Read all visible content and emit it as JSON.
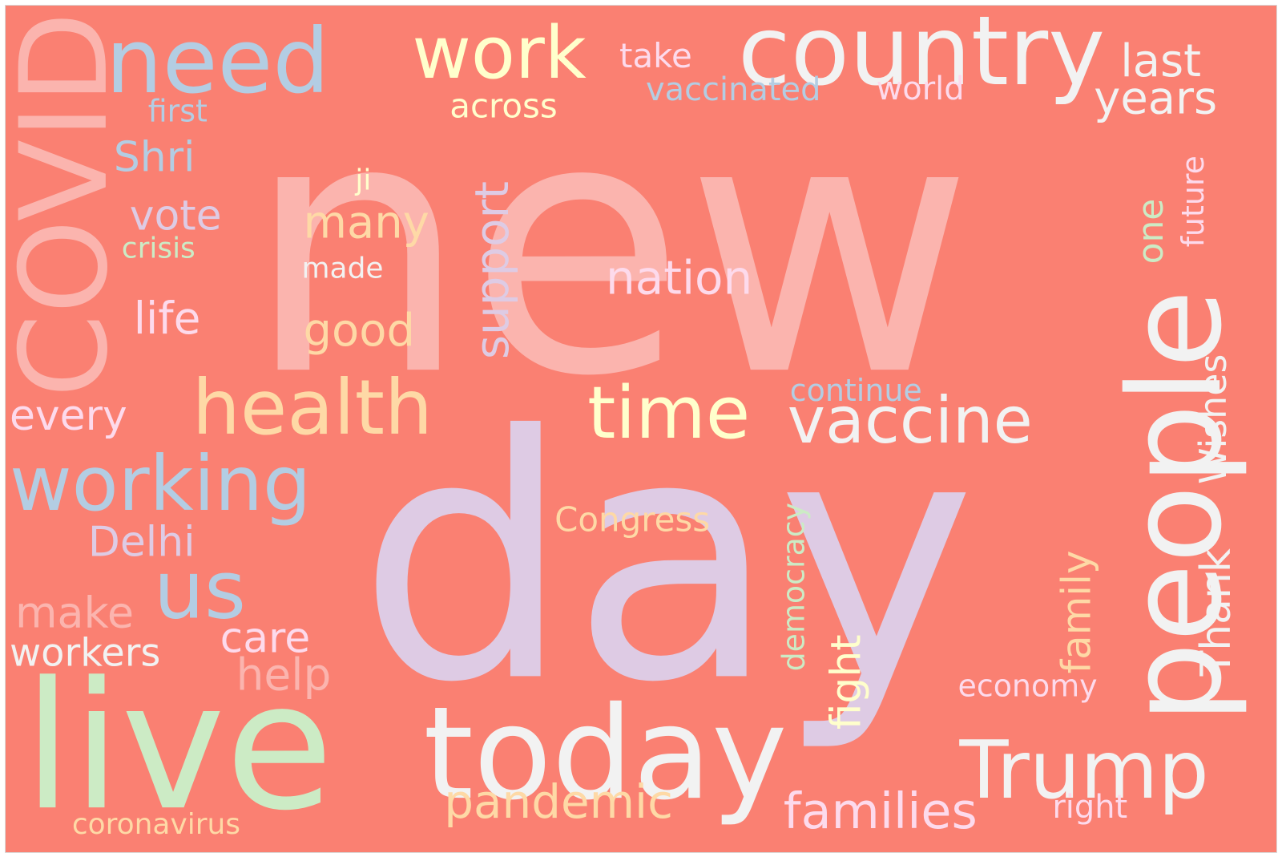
{
  "cloud": {
    "background": "#fa8072",
    "words": [
      {
        "id": "new",
        "text": "new",
        "color": "#fbb4ae"
      },
      {
        "id": "day",
        "text": "day",
        "color": "#decbe4"
      },
      {
        "id": "live",
        "text": "live",
        "color": "#ccebc5"
      },
      {
        "id": "people",
        "text": "people",
        "color": "#f2f2f2"
      },
      {
        "id": "covid",
        "text": "COVID",
        "color": "#fbb4ae"
      },
      {
        "id": "today",
        "text": "today",
        "color": "#f2f2f2"
      },
      {
        "id": "country",
        "text": "country",
        "color": "#f2f2f2"
      },
      {
        "id": "need",
        "text": "need",
        "color": "#b3cde3"
      },
      {
        "id": "work",
        "text": "work",
        "color": "#ffffcc"
      },
      {
        "id": "health",
        "text": "health",
        "color": "#fed9a6"
      },
      {
        "id": "working",
        "text": "working",
        "color": "#b3cde3"
      },
      {
        "id": "trump",
        "text": "Trump",
        "color": "#f2f2f2"
      },
      {
        "id": "vaccine",
        "text": "vaccine",
        "color": "#f2f2f2"
      },
      {
        "id": "time",
        "text": "time",
        "color": "#ffffcc"
      },
      {
        "id": "us",
        "text": "us",
        "color": "#b3cde3"
      },
      {
        "id": "nation",
        "text": "nation",
        "color": "#fddaec"
      },
      {
        "id": "families",
        "text": "families",
        "color": "#fddaec"
      },
      {
        "id": "pandemic",
        "text": "pandemic",
        "color": "#fed9a6"
      },
      {
        "id": "years",
        "text": "years",
        "color": "#f2f2f2"
      },
      {
        "id": "last",
        "text": "last",
        "color": "#f2f2f2"
      },
      {
        "id": "many",
        "text": "many",
        "color": "#fed9a6"
      },
      {
        "id": "good",
        "text": "good",
        "color": "#fed9a6"
      },
      {
        "id": "shri",
        "text": "Shri",
        "color": "#b3cde3"
      },
      {
        "id": "vote",
        "text": "vote",
        "color": "#decbe4"
      },
      {
        "id": "life",
        "text": "life",
        "color": "#fddaec"
      },
      {
        "id": "delhi",
        "text": "Delhi",
        "color": "#decbe4"
      },
      {
        "id": "every",
        "text": "every",
        "color": "#fddaec"
      },
      {
        "id": "make",
        "text": "make",
        "color": "#fbb4ae"
      },
      {
        "id": "workers",
        "text": "workers",
        "color": "#f2f2f2"
      },
      {
        "id": "care",
        "text": "care",
        "color": "#fddaec"
      },
      {
        "id": "help",
        "text": "help",
        "color": "#fbb4ae"
      },
      {
        "id": "support",
        "text": "support",
        "color": "#decbe4"
      },
      {
        "id": "family",
        "text": "family",
        "color": "#fed9a6"
      },
      {
        "id": "fight",
        "text": "fight",
        "color": "#ffffcc"
      },
      {
        "id": "thank",
        "text": "Thank",
        "color": "#f2f2f2"
      },
      {
        "id": "wishes",
        "text": "Wishes",
        "color": "#f2f2f2"
      },
      {
        "id": "across",
        "text": "across",
        "color": "#ffffcc"
      },
      {
        "id": "take",
        "text": "take",
        "color": "#fddaec"
      },
      {
        "id": "vaccinated",
        "text": "vaccinated",
        "color": "#b3cde3"
      },
      {
        "id": "world",
        "text": "world",
        "color": "#fddaec"
      },
      {
        "id": "first",
        "text": "first",
        "color": "#b3cde3"
      },
      {
        "id": "ji",
        "text": "ji",
        "color": "#ffffcc"
      },
      {
        "id": "crisis",
        "text": "crisis",
        "color": "#ccebc5"
      },
      {
        "id": "made",
        "text": "made",
        "color": "#f2f2f2"
      },
      {
        "id": "congress",
        "text": "Congress",
        "color": "#fed9a6"
      },
      {
        "id": "continue",
        "text": "continue",
        "color": "#b3cde3"
      },
      {
        "id": "democracy",
        "text": "democracy",
        "color": "#ccebc5"
      },
      {
        "id": "economy",
        "text": "economy",
        "color": "#fddaec"
      },
      {
        "id": "right",
        "text": "right",
        "color": "#fddaec"
      },
      {
        "id": "coronavirus",
        "text": "coronavirus",
        "color": "#fed9a6"
      },
      {
        "id": "one",
        "text": "one",
        "color": "#ccebc5"
      },
      {
        "id": "future",
        "text": "future",
        "color": "#fddaec"
      }
    ]
  }
}
